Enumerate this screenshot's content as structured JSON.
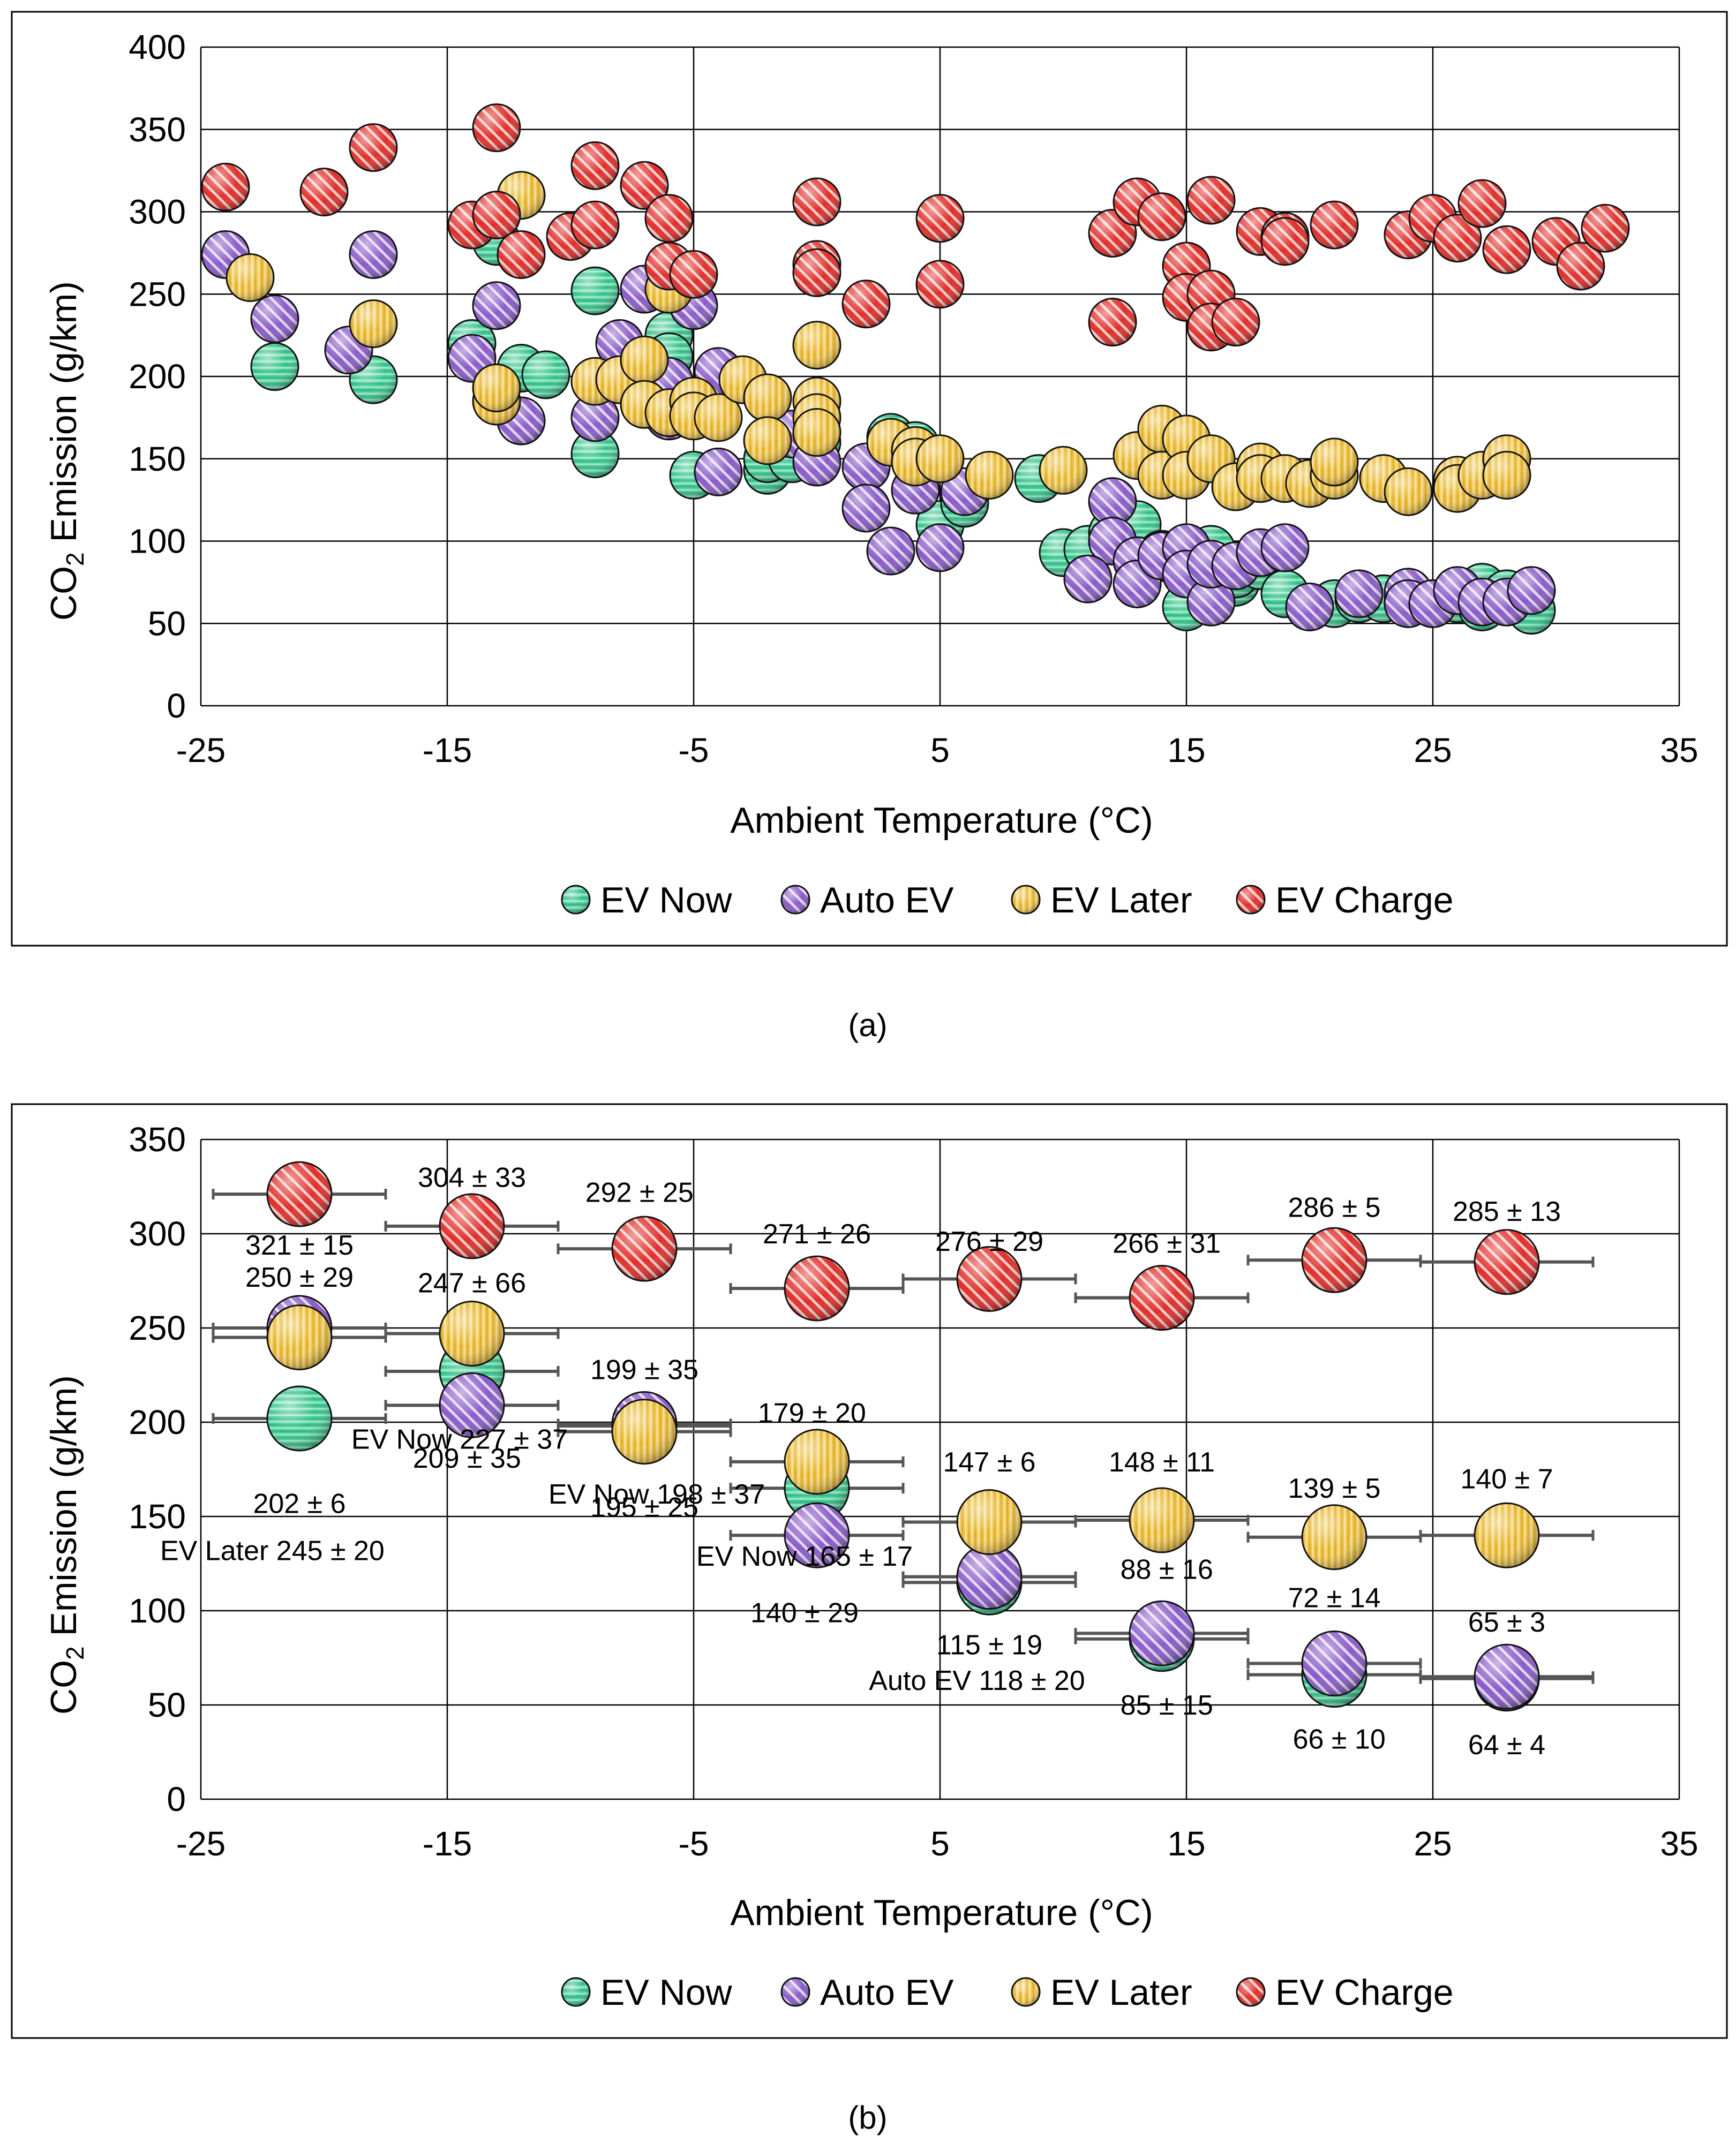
{
  "colors": {
    "ev_now": "#3fcf96",
    "auto_ev": "#8a5cc9",
    "ev_later": "#f2c23b",
    "ev_charge": "#e0302a",
    "grid": "#000000",
    "errorbar": "#555555"
  },
  "chart_data": [
    {
      "type": "scatter",
      "panel_label": "(a)",
      "xlabel": "Ambient Temperature (°C)",
      "ylabel_prefix": "CO",
      "ylabel_sub": "2",
      "ylabel_suffix": " Emission (g/km)",
      "xlim": [
        -25,
        35
      ],
      "ylim": [
        0,
        400
      ],
      "xticks": [
        "-25",
        "-15",
        "-5",
        "5",
        "15",
        "25",
        "35"
      ],
      "yticks": [
        "0",
        "50",
        "100",
        "150",
        "200",
        "250",
        "300",
        "350",
        "400"
      ],
      "grid": true,
      "legend_position": "bottom",
      "legend": [
        "EV Now",
        "Auto EV",
        "EV Later",
        "EV Charge"
      ],
      "series": [
        {
          "name": "EV Now",
          "color_key": "ev_now",
          "points": [
            [
              -22,
              206
            ],
            [
              -18,
              198
            ],
            [
              -14,
              220
            ],
            [
              -13,
              282
            ],
            [
              -12,
              205
            ],
            [
              -11,
              201
            ],
            [
              -9,
              252
            ],
            [
              -9,
              153
            ],
            [
              -6,
              225
            ],
            [
              -6,
              212
            ],
            [
              -5,
              140
            ],
            [
              -2,
              143
            ],
            [
              -2,
              150
            ],
            [
              -1,
              150
            ],
            [
              0,
              160
            ],
            [
              3,
              163
            ],
            [
              4,
              158
            ],
            [
              5,
              110
            ],
            [
              6,
              123
            ],
            [
              9,
              138
            ],
            [
              10,
              93
            ],
            [
              11,
              95
            ],
            [
              12,
              105
            ],
            [
              13,
              110
            ],
            [
              14,
              92
            ],
            [
              14,
              90
            ],
            [
              15,
              60
            ],
            [
              16,
              95
            ],
            [
              17,
              75
            ],
            [
              17,
              80
            ],
            [
              18,
              85
            ],
            [
              19,
              68
            ],
            [
              21,
              62
            ],
            [
              22,
              65
            ],
            [
              23,
              65
            ],
            [
              24,
              65
            ],
            [
              25,
              62
            ],
            [
              26,
              65
            ],
            [
              27,
              72
            ],
            [
              27,
              60
            ],
            [
              28,
              68
            ],
            [
              29,
              58
            ]
          ]
        },
        {
          "name": "Auto EV",
          "color_key": "auto_ev",
          "points": [
            [
              -24,
              274
            ],
            [
              -22,
              235
            ],
            [
              -19,
              216
            ],
            [
              -18,
              274
            ],
            [
              -14,
              211
            ],
            [
              -13,
              243
            ],
            [
              -12,
              173
            ],
            [
              -9,
              175
            ],
            [
              -8,
              220
            ],
            [
              -7,
              253
            ],
            [
              -6,
              197
            ],
            [
              -6,
              176
            ],
            [
              -5,
              243
            ],
            [
              -4,
              203
            ],
            [
              -4,
              142
            ],
            [
              -1,
              165
            ],
            [
              0,
              148
            ],
            [
              2,
              145
            ],
            [
              2,
              120
            ],
            [
              3,
              94
            ],
            [
              4,
              131
            ],
            [
              5,
              96
            ],
            [
              6,
              130
            ],
            [
              12,
              124
            ],
            [
              12,
              100
            ],
            [
              11,
              77
            ],
            [
              13,
              88
            ],
            [
              13,
              74
            ],
            [
              14,
              91
            ],
            [
              15,
              96
            ],
            [
              15,
              80
            ],
            [
              16,
              63
            ],
            [
              16,
              86
            ],
            [
              17,
              85
            ],
            [
              18,
              93
            ],
            [
              19,
              96
            ],
            [
              20,
              60
            ],
            [
              22,
              68
            ],
            [
              24,
              69
            ],
            [
              24,
              62
            ],
            [
              25,
              62
            ],
            [
              26,
              70
            ],
            [
              27,
              63
            ],
            [
              28,
              63
            ],
            [
              29,
              70
            ]
          ]
        },
        {
          "name": "EV Later",
          "color_key": "ev_later",
          "points": [
            [
              -23,
              260
            ],
            [
              -18,
              232
            ],
            [
              -13,
              185
            ],
            [
              -13,
              193
            ],
            [
              -12,
              310
            ],
            [
              -9,
              197
            ],
            [
              -8,
              198
            ],
            [
              -7,
              210
            ],
            [
              -7,
              183
            ],
            [
              -6,
              178
            ],
            [
              -6,
              253
            ],
            [
              -5,
              185
            ],
            [
              -5,
              176
            ],
            [
              -4,
              175
            ],
            [
              -3,
              198
            ],
            [
              -2,
              187
            ],
            [
              -2,
              161
            ],
            [
              0,
              219
            ],
            [
              0,
              185
            ],
            [
              0,
              175
            ],
            [
              0,
              166
            ],
            [
              3,
              160
            ],
            [
              4,
              155
            ],
            [
              4,
              148
            ],
            [
              5,
              150
            ],
            [
              7,
              140
            ],
            [
              10,
              143
            ],
            [
              13,
              152
            ],
            [
              14,
              168
            ],
            [
              14,
              140
            ],
            [
              15,
              162
            ],
            [
              15,
              140
            ],
            [
              16,
              150
            ],
            [
              17,
              133
            ],
            [
              18,
              145
            ],
            [
              18,
              138
            ],
            [
              19,
              138
            ],
            [
              20,
              135
            ],
            [
              21,
              140
            ],
            [
              21,
              148
            ],
            [
              23,
              138
            ],
            [
              24,
              130
            ],
            [
              26,
              137
            ],
            [
              26,
              132
            ],
            [
              27,
              140
            ],
            [
              28,
              150
            ],
            [
              28,
              140
            ]
          ]
        },
        {
          "name": "EV Charge",
          "color_key": "ev_charge",
          "points": [
            [
              -24,
              315
            ],
            [
              -20,
              312
            ],
            [
              -18,
              339
            ],
            [
              -14,
              292
            ],
            [
              -13,
              351
            ],
            [
              -13,
              298
            ],
            [
              -12,
              274
            ],
            [
              -10,
              285
            ],
            [
              -9,
              328
            ],
            [
              -9,
              292
            ],
            [
              -7,
              316
            ],
            [
              -6,
              267
            ],
            [
              -6,
              296
            ],
            [
              -5,
              262
            ],
            [
              0,
              306
            ],
            [
              0,
              268
            ],
            [
              0,
              263
            ],
            [
              2,
              244
            ],
            [
              5,
              296
            ],
            [
              5,
              256
            ],
            [
              12,
              287
            ],
            [
              12,
              233
            ],
            [
              13,
              306
            ],
            [
              14,
              297
            ],
            [
              15,
              267
            ],
            [
              15,
              248
            ],
            [
              16,
              307
            ],
            [
              16,
              250
            ],
            [
              16,
              230
            ],
            [
              17,
              233
            ],
            [
              18,
              288
            ],
            [
              19,
              285
            ],
            [
              19,
              282
            ],
            [
              21,
              292
            ],
            [
              24,
              286
            ],
            [
              25,
              296
            ],
            [
              26,
              284
            ],
            [
              27,
              305
            ],
            [
              28,
              277
            ],
            [
              30,
              282
            ],
            [
              31,
              267
            ],
            [
              32,
              290
            ]
          ]
        }
      ]
    },
    {
      "type": "scatter",
      "panel_label": "(b)",
      "xlabel": "Ambient Temperature (°C)",
      "ylabel_prefix": "CO",
      "ylabel_sub": "2",
      "ylabel_suffix": " Emission (g/km)",
      "xlim": [
        -25,
        35
      ],
      "ylim": [
        0,
        350
      ],
      "xticks": [
        "-25",
        "-15",
        "-5",
        "5",
        "15",
        "25",
        "35"
      ],
      "yticks": [
        "0",
        "50",
        "100",
        "150",
        "200",
        "250",
        "300",
        "350"
      ],
      "grid": true,
      "legend_position": "bottom",
      "legend": [
        "EV Now",
        "Auto EV",
        "EV Later",
        "EV Charge"
      ],
      "xerr": 3.5,
      "series": [
        {
          "name": "EV Now",
          "color_key": "ev_now",
          "points": [
            [
              -21,
              202
            ],
            [
              -14,
              227
            ],
            [
              -7,
              198
            ],
            [
              0,
              165
            ],
            [
              7,
              115
            ],
            [
              14,
              85
            ],
            [
              21,
              66
            ],
            [
              28,
              64
            ]
          ],
          "labels": [
            "202 ± 6",
            "EV Now 227 ± 37",
            "EV Now 198 ± 37",
            "EV Now 165 ± 17",
            "115 ± 19",
            "85 ± 15",
            "66 ± 10",
            "64 ± 4"
          ],
          "label_offsets": [
            [
              0,
              -45
            ],
            [
              -0.5,
              -36
            ],
            [
              0.5,
              -36
            ],
            [
              -0.5,
              -36
            ],
            [
              0,
              -33
            ],
            [
              0.2,
              -35
            ],
            [
              0.2,
              -34
            ],
            [
              0,
              -35
            ]
          ]
        },
        {
          "name": "Auto EV",
          "color_key": "auto_ev",
          "points": [
            [
              -21,
              250
            ],
            [
              -14,
              209
            ],
            [
              -7,
              199
            ],
            [
              0,
              140
            ],
            [
              7,
              118
            ],
            [
              14,
              88
            ],
            [
              21,
              72
            ],
            [
              28,
              65
            ]
          ],
          "labels": [
            "250 ± 29",
            "209 ± 35",
            "199 ± 35",
            "140 ± 29",
            "Auto EV 118 ± 20",
            "88 ± 16",
            "72 ± 14",
            "65 ± 3"
          ],
          "label_offsets": [
            [
              0,
              27
            ],
            [
              -0.2,
              -28
            ],
            [
              0,
              29
            ],
            [
              -0.5,
              -41
            ],
            [
              -0.5,
              -55
            ],
            [
              0.2,
              34
            ],
            [
              0,
              35
            ],
            [
              0,
              29
            ]
          ]
        },
        {
          "name": "EV Later",
          "color_key": "ev_later",
          "points": [
            [
              -21,
              245
            ],
            [
              -14,
              247
            ],
            [
              -7,
              195
            ],
            [
              0,
              179
            ],
            [
              7,
              147
            ],
            [
              14,
              148
            ],
            [
              21,
              139
            ],
            [
              28,
              140
            ]
          ],
          "labels": [
            "EV Later 245 ± 20",
            "247 ± 66",
            "195 ± 25",
            "179 ± 20",
            "147 ± 6",
            "148 ± 11",
            "139 ± 5",
            "140 ± 7"
          ],
          "label_offsets": [
            [
              -1.1,
              -113
            ],
            [
              0,
              27
            ],
            [
              0,
              -40
            ],
            [
              -0.2,
              26
            ],
            [
              0,
              32
            ],
            [
              0,
              31
            ],
            [
              0,
              26
            ],
            [
              0,
              30
            ]
          ]
        },
        {
          "name": "EV Charge",
          "color_key": "ev_charge",
          "points": [
            [
              -21,
              321
            ],
            [
              -14,
              304
            ],
            [
              -7,
              292
            ],
            [
              0,
              271
            ],
            [
              7,
              276
            ],
            [
              14,
              266
            ],
            [
              21,
              286
            ],
            [
              28,
              285
            ]
          ],
          "labels": [
            "321 ± 15",
            "304 ± 33",
            "292 ± 25",
            "271 ± 26",
            "276 ± 29",
            "266 ± 31",
            "286 ± 5",
            "285 ± 13"
          ],
          "label_offsets": [
            [
              0,
              -27
            ],
            [
              0,
              26
            ],
            [
              -0.2,
              30
            ],
            [
              0,
              29
            ],
            [
              0,
              20
            ],
            [
              0.2,
              29
            ],
            [
              0,
              28
            ],
            [
              0,
              27
            ]
          ]
        }
      ]
    }
  ]
}
